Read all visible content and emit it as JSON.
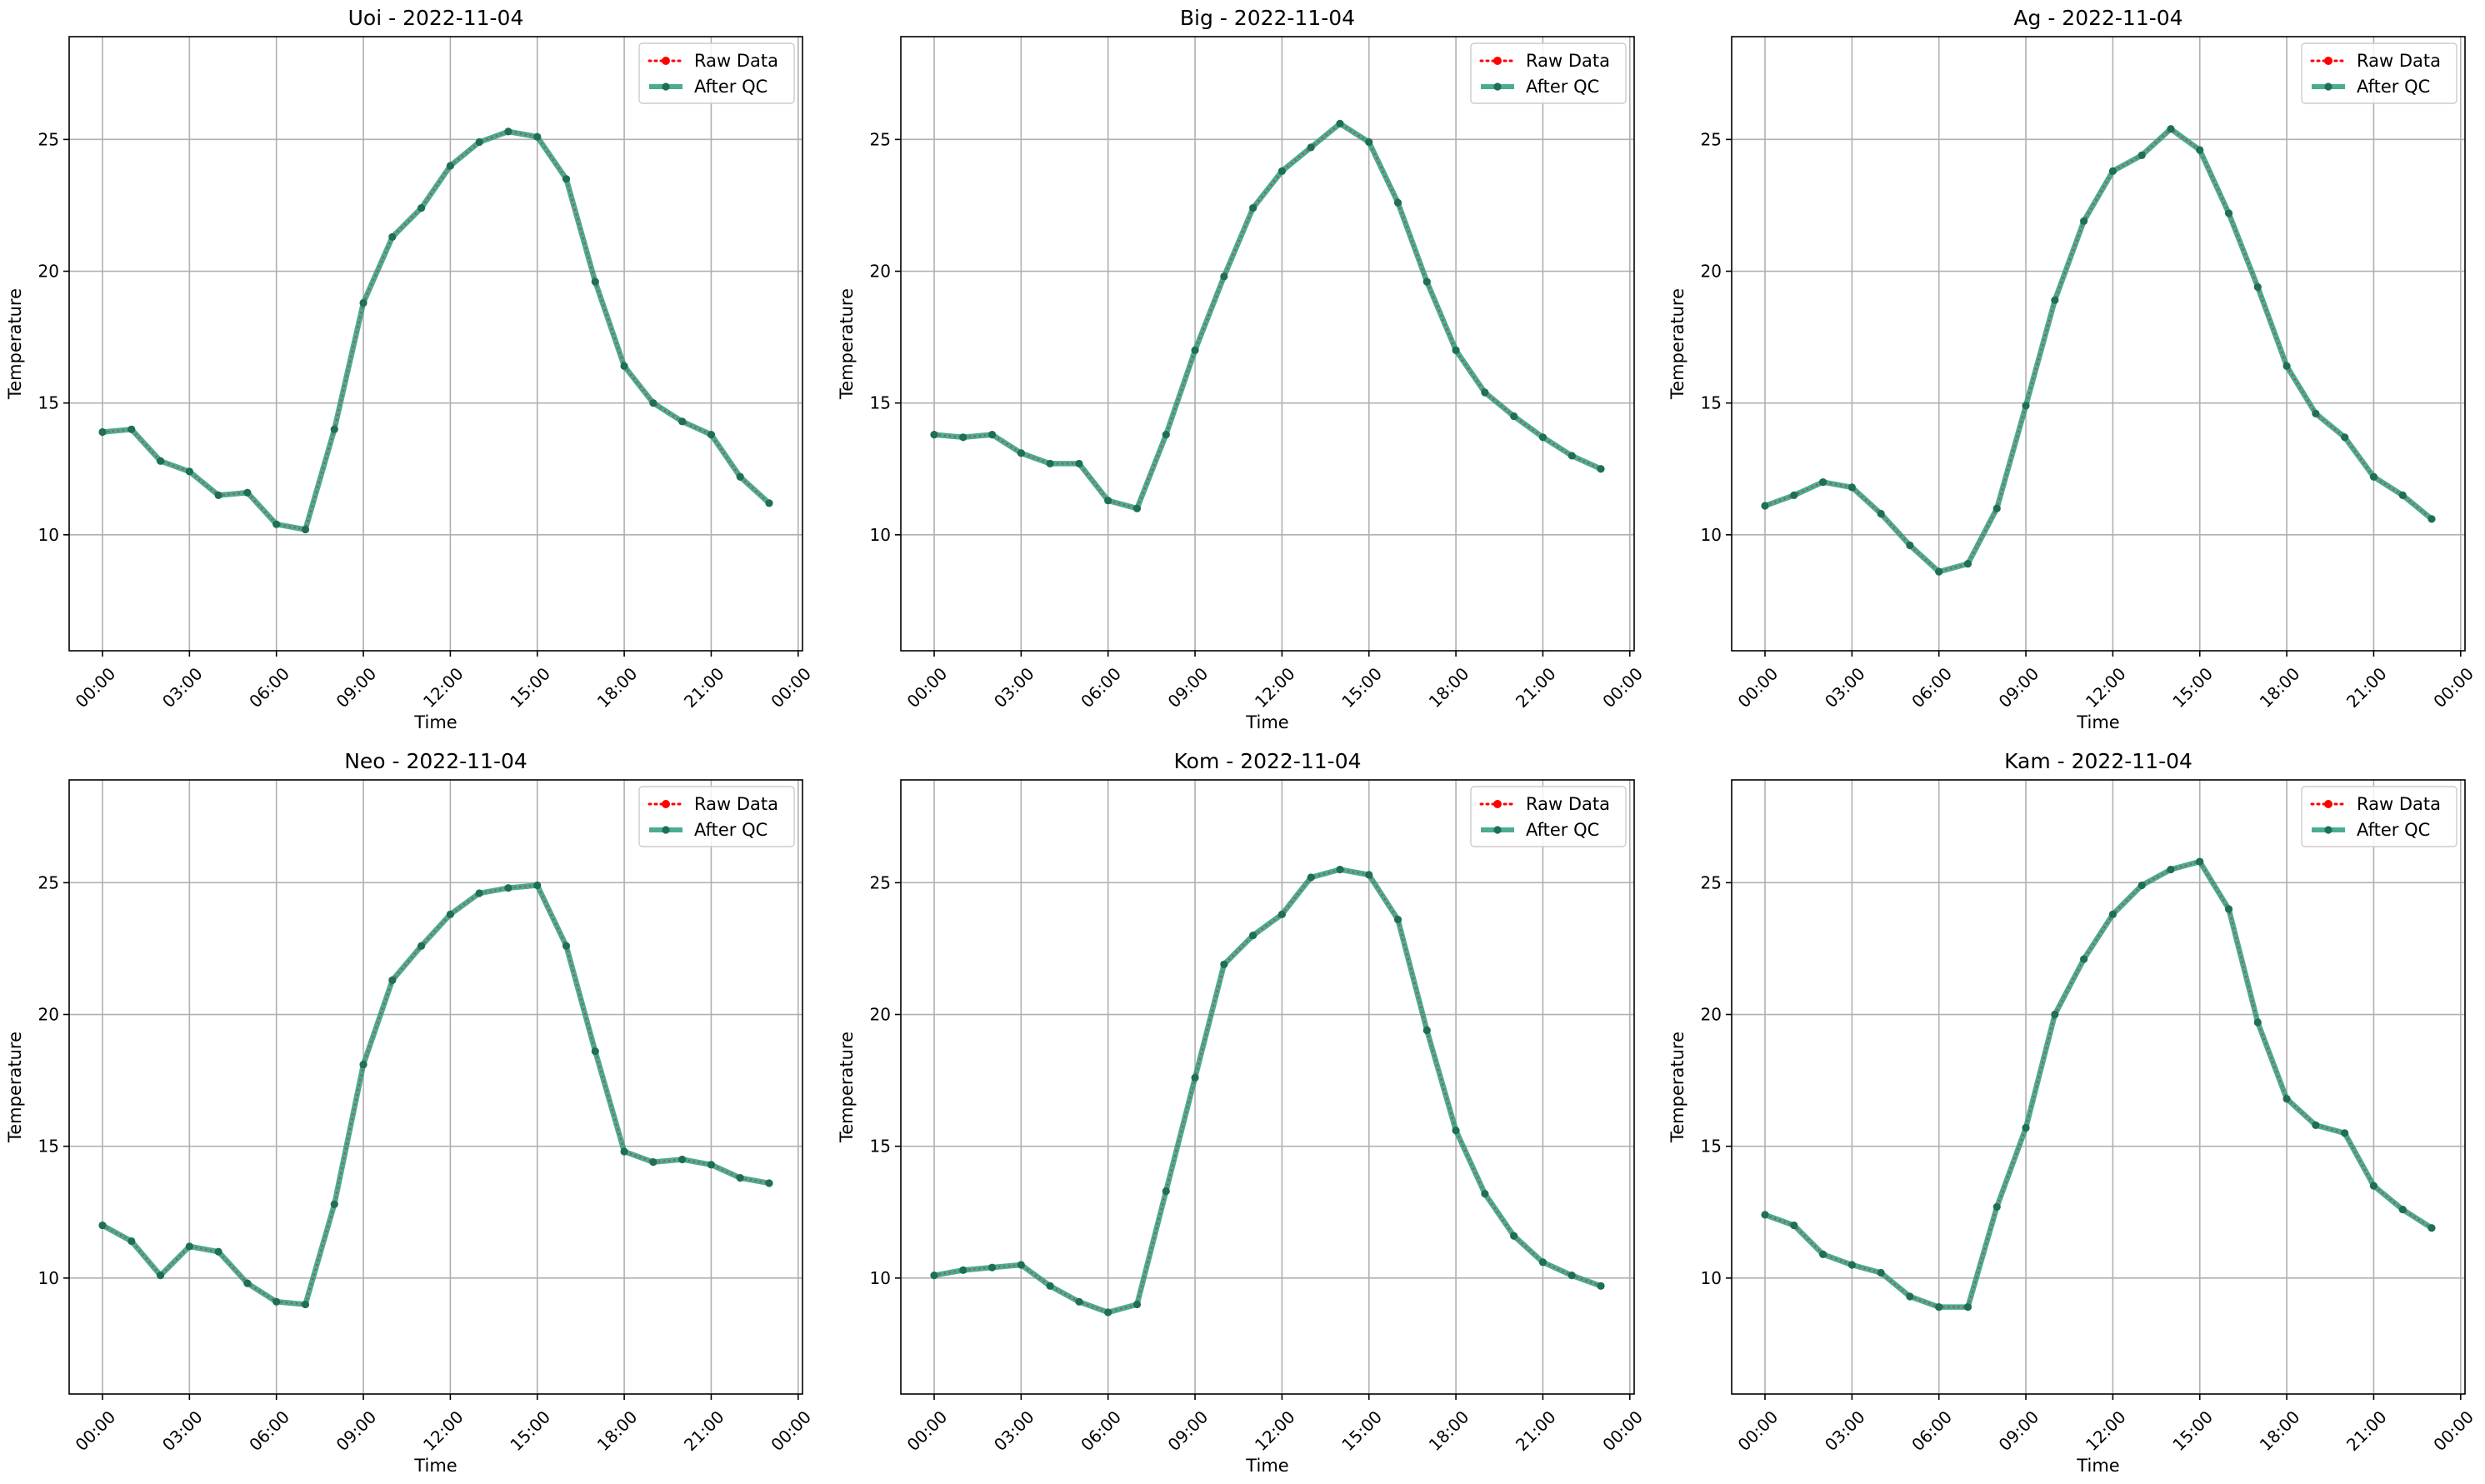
{
  "chart_data": [
    {
      "type": "line",
      "title": "Uoi - 2022-11-04",
      "xlabel": "Time",
      "ylabel": "Temperature",
      "x": [
        "00:00",
        "01:00",
        "02:00",
        "03:00",
        "04:00",
        "05:00",
        "06:00",
        "07:00",
        "08:00",
        "09:00",
        "10:00",
        "11:00",
        "12:00",
        "13:00",
        "14:00",
        "15:00",
        "16:00",
        "17:00",
        "18:00",
        "19:00",
        "20:00",
        "21:00",
        "22:00",
        "23:00"
      ],
      "series": [
        {
          "name": "Raw Data",
          "values": [
            13.9,
            14.0,
            12.8,
            12.4,
            11.5,
            11.6,
            10.4,
            10.2,
            14.0,
            18.8,
            21.3,
            22.4,
            24.0,
            24.9,
            25.3,
            25.1,
            23.5,
            19.6,
            16.4,
            15.0,
            14.3,
            13.8,
            12.2,
            11.2
          ]
        },
        {
          "name": "After QC",
          "values": [
            13.9,
            14.0,
            12.8,
            12.4,
            11.5,
            11.6,
            10.4,
            10.2,
            14.0,
            18.8,
            21.3,
            22.4,
            24.0,
            24.9,
            25.3,
            25.1,
            23.5,
            19.6,
            16.4,
            15.0,
            14.3,
            13.8,
            12.2,
            11.2
          ]
        }
      ],
      "xticks": [
        "00:00",
        "03:00",
        "06:00",
        "09:00",
        "12:00",
        "15:00",
        "18:00",
        "21:00",
        "00:00"
      ],
      "xlim_hours": [
        -1.15,
        24.15
      ],
      "yticks": [
        10,
        15,
        20,
        25
      ],
      "ylim": [
        5.6,
        28.9
      ],
      "grid": true,
      "legend": "top-right"
    },
    {
      "type": "line",
      "title": "Big - 2022-11-04",
      "xlabel": "Time",
      "ylabel": "Temperature",
      "x": [
        "00:00",
        "01:00",
        "02:00",
        "03:00",
        "04:00",
        "05:00",
        "06:00",
        "07:00",
        "08:00",
        "09:00",
        "10:00",
        "11:00",
        "12:00",
        "13:00",
        "14:00",
        "15:00",
        "16:00",
        "17:00",
        "18:00",
        "19:00",
        "20:00",
        "21:00",
        "22:00",
        "23:00"
      ],
      "series": [
        {
          "name": "Raw Data",
          "values": [
            13.8,
            13.7,
            13.8,
            13.1,
            12.7,
            12.7,
            11.3,
            11.0,
            13.8,
            17.0,
            19.8,
            22.4,
            23.8,
            24.7,
            25.6,
            24.9,
            22.6,
            19.6,
            17.0,
            15.4,
            14.5,
            13.7,
            13.0,
            12.5
          ]
        },
        {
          "name": "After QC",
          "values": [
            13.8,
            13.7,
            13.8,
            13.1,
            12.7,
            12.7,
            11.3,
            11.0,
            13.8,
            17.0,
            19.8,
            22.4,
            23.8,
            24.7,
            25.6,
            24.9,
            22.6,
            19.6,
            17.0,
            15.4,
            14.5,
            13.7,
            13.0,
            12.5
          ]
        }
      ],
      "xticks": [
        "00:00",
        "03:00",
        "06:00",
        "09:00",
        "12:00",
        "15:00",
        "18:00",
        "21:00",
        "00:00"
      ],
      "xlim_hours": [
        -1.15,
        24.15
      ],
      "yticks": [
        10,
        15,
        20,
        25
      ],
      "ylim": [
        5.6,
        28.9
      ],
      "grid": true,
      "legend": "top-right"
    },
    {
      "type": "line",
      "title": "Ag - 2022-11-04",
      "xlabel": "Time",
      "ylabel": "Temperature",
      "x": [
        "00:00",
        "01:00",
        "02:00",
        "03:00",
        "04:00",
        "05:00",
        "06:00",
        "07:00",
        "08:00",
        "09:00",
        "10:00",
        "11:00",
        "12:00",
        "13:00",
        "14:00",
        "15:00",
        "16:00",
        "17:00",
        "18:00",
        "19:00",
        "20:00",
        "21:00",
        "22:00",
        "23:00"
      ],
      "series": [
        {
          "name": "Raw Data",
          "values": [
            11.1,
            11.5,
            12.0,
            11.8,
            10.8,
            9.6,
            8.6,
            8.9,
            11.0,
            14.9,
            18.9,
            21.9,
            23.8,
            24.4,
            25.4,
            24.6,
            22.2,
            19.4,
            16.4,
            14.6,
            13.7,
            12.2,
            11.5,
            10.6
          ]
        },
        {
          "name": "After QC",
          "values": [
            11.1,
            11.5,
            12.0,
            11.8,
            10.8,
            9.6,
            8.6,
            8.9,
            11.0,
            14.9,
            18.9,
            21.9,
            23.8,
            24.4,
            25.4,
            24.6,
            22.2,
            19.4,
            16.4,
            14.6,
            13.7,
            12.2,
            11.5,
            10.6
          ]
        }
      ],
      "xticks": [
        "00:00",
        "03:00",
        "06:00",
        "09:00",
        "12:00",
        "15:00",
        "18:00",
        "21:00",
        "00:00"
      ],
      "xlim_hours": [
        -1.15,
        24.15
      ],
      "yticks": [
        10,
        15,
        20,
        25
      ],
      "ylim": [
        5.6,
        28.9
      ],
      "grid": true,
      "legend": "top-right"
    },
    {
      "type": "line",
      "title": "Neo - 2022-11-04",
      "xlabel": "Time",
      "ylabel": "Temperature",
      "x": [
        "00:00",
        "01:00",
        "02:00",
        "03:00",
        "04:00",
        "05:00",
        "06:00",
        "07:00",
        "08:00",
        "09:00",
        "10:00",
        "11:00",
        "12:00",
        "13:00",
        "14:00",
        "15:00",
        "16:00",
        "17:00",
        "18:00",
        "19:00",
        "20:00",
        "21:00",
        "22:00",
        "23:00"
      ],
      "series": [
        {
          "name": "Raw Data",
          "values": [
            12.0,
            11.4,
            10.1,
            11.2,
            11.0,
            9.8,
            9.1,
            9.0,
            12.8,
            18.1,
            21.3,
            22.6,
            23.8,
            24.6,
            24.8,
            24.9,
            22.6,
            18.6,
            14.8,
            14.4,
            14.5,
            14.3,
            13.8,
            13.6
          ]
        },
        {
          "name": "After QC",
          "values": [
            12.0,
            11.4,
            10.1,
            11.2,
            11.0,
            9.8,
            9.1,
            9.0,
            12.8,
            18.1,
            21.3,
            22.6,
            23.8,
            24.6,
            24.8,
            24.9,
            22.6,
            18.6,
            14.8,
            14.4,
            14.5,
            14.3,
            13.8,
            13.6
          ]
        }
      ],
      "xticks": [
        "00:00",
        "03:00",
        "06:00",
        "09:00",
        "12:00",
        "15:00",
        "18:00",
        "21:00",
        "00:00"
      ],
      "xlim_hours": [
        -1.15,
        24.15
      ],
      "yticks": [
        10,
        15,
        20,
        25
      ],
      "ylim": [
        5.6,
        28.9
      ],
      "grid": true,
      "legend": "top-right"
    },
    {
      "type": "line",
      "title": "Kom - 2022-11-04",
      "xlabel": "Time",
      "ylabel": "Temperature",
      "x": [
        "00:00",
        "01:00",
        "02:00",
        "03:00",
        "04:00",
        "05:00",
        "06:00",
        "07:00",
        "08:00",
        "09:00",
        "10:00",
        "11:00",
        "12:00",
        "13:00",
        "14:00",
        "15:00",
        "16:00",
        "17:00",
        "18:00",
        "19:00",
        "20:00",
        "21:00",
        "22:00",
        "23:00"
      ],
      "series": [
        {
          "name": "Raw Data",
          "values": [
            10.1,
            10.3,
            10.4,
            10.5,
            9.7,
            9.1,
            8.7,
            9.0,
            13.3,
            17.6,
            21.9,
            23.0,
            23.8,
            25.2,
            25.5,
            25.3,
            23.6,
            19.4,
            15.6,
            13.2,
            11.6,
            10.6,
            10.1,
            9.7
          ]
        },
        {
          "name": "After QC",
          "values": [
            10.1,
            10.3,
            10.4,
            10.5,
            9.7,
            9.1,
            8.7,
            9.0,
            13.3,
            17.6,
            21.9,
            23.0,
            23.8,
            25.2,
            25.5,
            25.3,
            23.6,
            19.4,
            15.6,
            13.2,
            11.6,
            10.6,
            10.1,
            9.7
          ]
        }
      ],
      "xticks": [
        "00:00",
        "03:00",
        "06:00",
        "09:00",
        "12:00",
        "15:00",
        "18:00",
        "21:00",
        "00:00"
      ],
      "xlim_hours": [
        -1.15,
        24.15
      ],
      "yticks": [
        10,
        15,
        20,
        25
      ],
      "ylim": [
        5.6,
        28.9
      ],
      "grid": true,
      "legend": "top-right"
    },
    {
      "type": "line",
      "title": "Kam - 2022-11-04",
      "xlabel": "Time",
      "ylabel": "Temperature",
      "x": [
        "00:00",
        "01:00",
        "02:00",
        "03:00",
        "04:00",
        "05:00",
        "06:00",
        "07:00",
        "08:00",
        "09:00",
        "10:00",
        "11:00",
        "12:00",
        "13:00",
        "14:00",
        "15:00",
        "16:00",
        "17:00",
        "18:00",
        "19:00",
        "20:00",
        "21:00",
        "22:00",
        "23:00"
      ],
      "series": [
        {
          "name": "Raw Data",
          "values": [
            12.4,
            12.0,
            10.9,
            10.5,
            10.2,
            9.3,
            8.9,
            8.9,
            12.7,
            15.7,
            20.0,
            22.1,
            23.8,
            24.9,
            25.5,
            25.8,
            24.0,
            19.7,
            16.8,
            15.8,
            15.5,
            13.5,
            12.6,
            11.9
          ]
        },
        {
          "name": "After QC",
          "values": [
            12.4,
            12.0,
            10.9,
            10.5,
            10.2,
            9.3,
            8.9,
            8.9,
            12.7,
            15.7,
            20.0,
            22.1,
            23.8,
            24.9,
            25.5,
            25.8,
            24.0,
            19.7,
            16.8,
            15.8,
            15.5,
            13.5,
            12.6,
            11.9
          ]
        }
      ],
      "xticks": [
        "00:00",
        "03:00",
        "06:00",
        "09:00",
        "12:00",
        "15:00",
        "18:00",
        "21:00",
        "00:00"
      ],
      "xlim_hours": [
        -1.15,
        24.15
      ],
      "yticks": [
        10,
        15,
        20,
        25
      ],
      "ylim": [
        5.6,
        28.9
      ],
      "grid": true,
      "legend": "top-right"
    }
  ],
  "colors": {
    "raw_data": "#ff0000",
    "after_qc_line": "#2a9d7f",
    "after_qc_marker": "#1f6f55",
    "grid": "#b0b0b0"
  },
  "xtick_rotation_deg": -45
}
